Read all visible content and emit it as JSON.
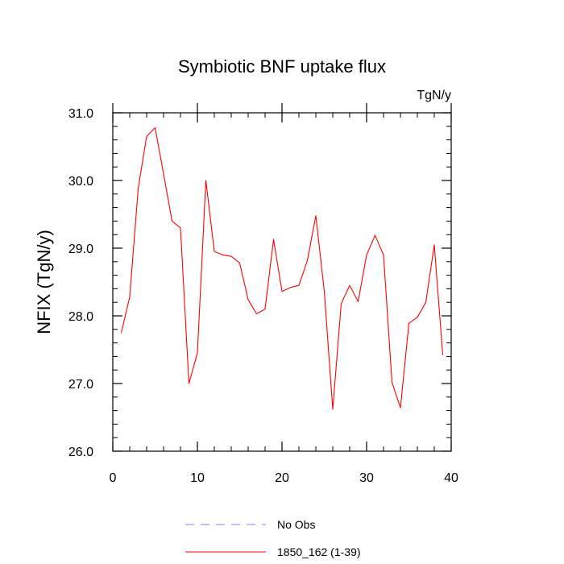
{
  "chart_data": {
    "type": "line",
    "title": "Symbiotic BNF uptake flux",
    "units": "TgN/y",
    "ylabel": "NFIX  (TgN/y)",
    "xlabel": "",
    "xlim": [
      0,
      40
    ],
    "ylim": [
      26.0,
      31.0
    ],
    "xticks": [
      0,
      10,
      20,
      30,
      40
    ],
    "yticks": [
      26.0,
      27.0,
      28.0,
      29.0,
      30.0,
      31.0
    ],
    "x_tick_labels": [
      "0",
      "10",
      "20",
      "30",
      "40"
    ],
    "y_tick_labels": [
      "26.0",
      "27.0",
      "28.0",
      "29.0",
      "30.0",
      "31.0"
    ],
    "grid": false,
    "legend_position": "bottom",
    "series": [
      {
        "name": "1850_162 (1-39)",
        "color": "#ff0000",
        "style": "solid",
        "x": [
          1,
          2,
          3,
          4,
          5,
          6,
          7,
          8,
          9,
          10,
          11,
          12,
          13,
          14,
          15,
          16,
          17,
          18,
          19,
          20,
          21,
          22,
          23,
          24,
          25,
          26,
          27,
          28,
          29,
          30,
          31,
          32,
          33,
          34,
          35,
          36,
          37,
          38,
          39
        ],
        "y": [
          27.75,
          28.28,
          29.88,
          30.65,
          30.78,
          30.1,
          29.4,
          29.3,
          27.0,
          27.45,
          30.0,
          28.95,
          28.9,
          28.88,
          28.78,
          28.24,
          28.03,
          28.1,
          29.13,
          28.36,
          28.42,
          28.45,
          28.82,
          29.48,
          28.36,
          26.62,
          28.18,
          28.45,
          28.21,
          28.9,
          29.19,
          28.9,
          27.02,
          26.64,
          27.89,
          27.98,
          28.2,
          29.05,
          27.42
        ]
      }
    ],
    "legend": [
      {
        "label": "No Obs",
        "color": "#8080ff",
        "style": "dashed"
      },
      {
        "label": "1850_162 (1-39)",
        "color": "#ff0000",
        "style": "solid"
      }
    ]
  }
}
